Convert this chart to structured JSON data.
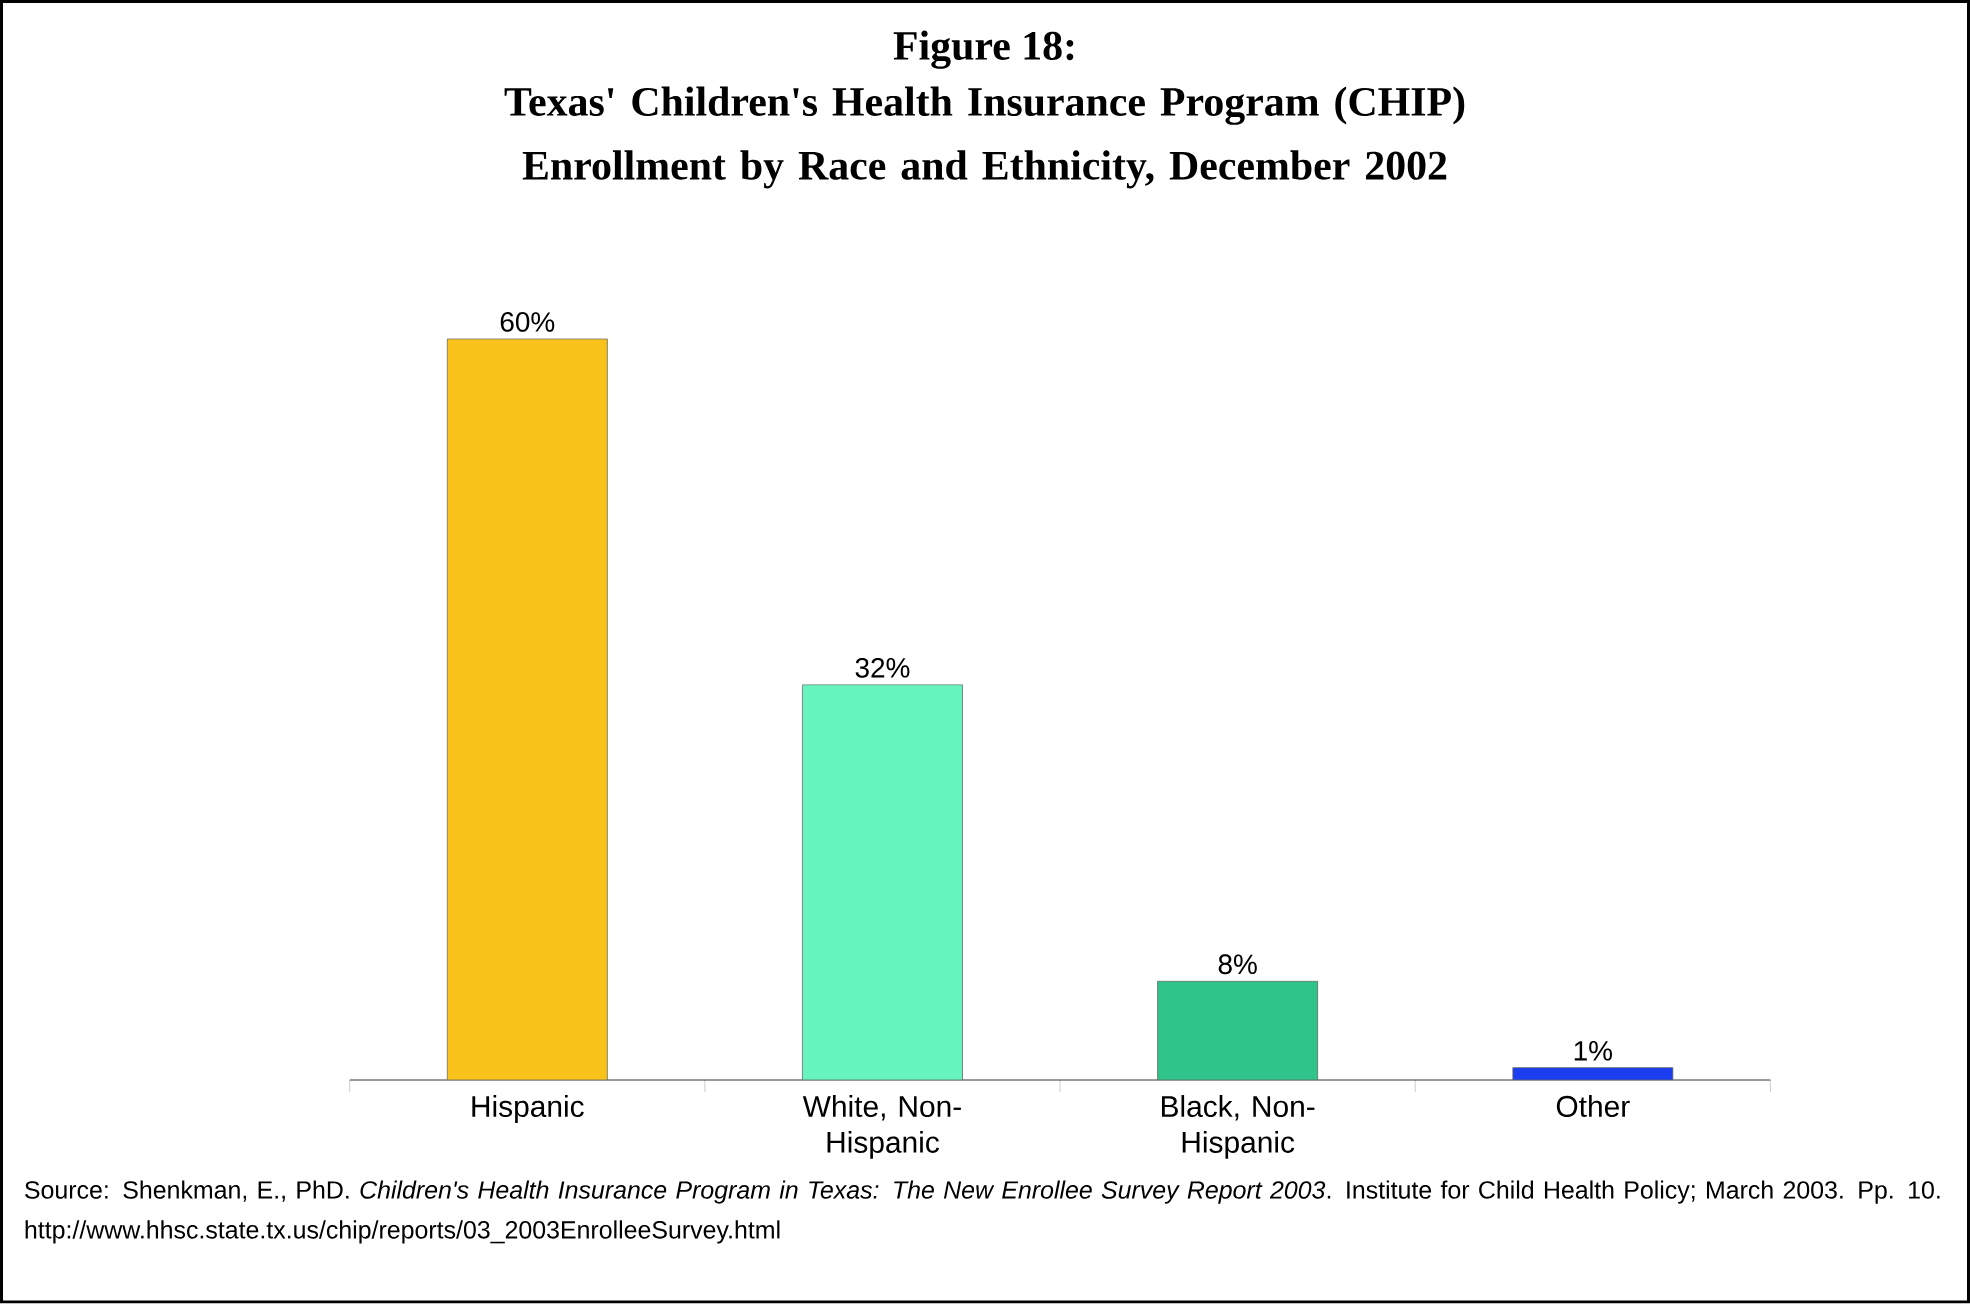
{
  "chart_data": {
    "type": "bar",
    "title": "Figure 18:",
    "subtitle": "Texas' Children's Health Insurance Program (CHIP) Enrollment by Race and Ethnicity, December 2002",
    "categories": [
      "Hispanic",
      "White, Non-Hispanic",
      "Black, Non-Hispanic",
      "Other"
    ],
    "values": [
      60,
      32,
      8,
      1
    ],
    "colors": [
      "#f8c21a",
      "#66f5bf",
      "#2ec48a",
      "#1a3ef0"
    ],
    "value_labels": [
      "60%",
      "32%",
      "8%",
      "1%"
    ],
    "annotations": [
      "Source:  Shenkman, E., PhD.  *Children's Health Insurance Program in Texas: The New Enrollee Survey Report 2003*.  Institute for Child Health Policy; March 2003.  Pp. 10.  http://www.hhsc.state.tx.us/chip/reports/03_2003EnrolleeSurvey.html"
    ]
  }
}
